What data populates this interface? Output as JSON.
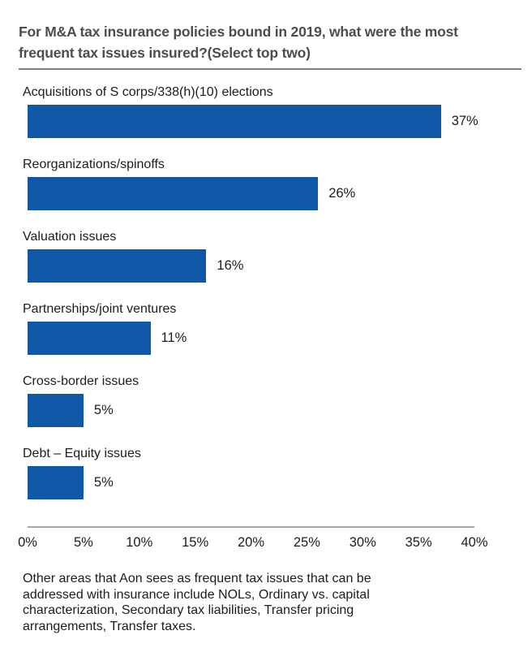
{
  "title": {
    "line1": "For M&A tax insurance policies bound in 2019, what were the most",
    "line2": "frequent tax issues insured?(Select top two)"
  },
  "chart_data": {
    "type": "bar",
    "orientation": "horizontal",
    "title": "For M&A tax insurance policies bound in 2019, what were the most frequent tax issues insured?(Select top two)",
    "categories": [
      "Acquisitions of S corps/338(h)(10) elections",
      "Reorganizations/spinoffs",
      "Valuation issues",
      "Partnerships/joint ventures",
      "Cross-border issues",
      "Debt – Equity issues"
    ],
    "values": [
      37,
      26,
      16,
      11,
      5,
      5
    ],
    "value_labels": [
      "37%",
      "26%",
      "16%",
      "11%",
      "5%",
      "5%"
    ],
    "x_ticks": [
      "0%",
      "5%",
      "10%",
      "15%",
      "20%",
      "25%",
      "30%",
      "35%",
      "40%"
    ],
    "xlim": [
      0,
      40
    ],
    "xlabel": "",
    "ylabel": "",
    "grid": false,
    "legend": false,
    "bar_color": "#0e58a7"
  },
  "colors": {
    "bar": "#0e58a7",
    "title_text": "#4d4d4f",
    "body_text": "#1c1c1e",
    "title_divider": "#7f8184",
    "axis_line": "#a5a7aa",
    "background": "#ffffff"
  },
  "footer": {
    "lines": [
      "Other areas that Aon sees as frequent tax issues that can be",
      "addressed with insurance include NOLs, Ordinary vs. capital",
      "characterization, Secondary tax liabilities, Transfer pricing",
      "arrangements, Transfer taxes."
    ]
  }
}
